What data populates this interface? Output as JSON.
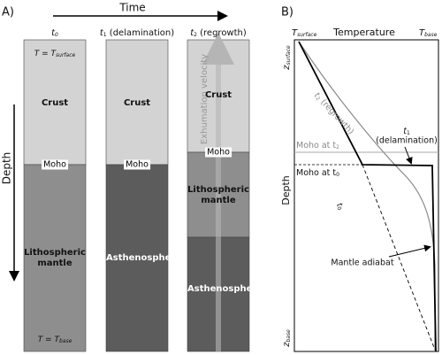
{
  "panel_a": {
    "label": "A)",
    "time_axis": "Time",
    "depth_axis": "Depth",
    "columns": [
      {
        "header": {
          "var": "t",
          "sub": "0"
        },
        "top_condition": {
          "text": "T = T",
          "sub": "surface"
        },
        "layers": [
          "Crust",
          "Lithospheric mantle"
        ],
        "moho": "Moho",
        "bottom_condition": {
          "text": "T = T",
          "sub": "base"
        }
      },
      {
        "header": {
          "var": "t",
          "sub": "1",
          "rest": " (delamination)"
        },
        "layers": [
          "Crust",
          "Asthenosphere"
        ],
        "moho": "Moho"
      },
      {
        "header": {
          "var": "t",
          "sub": "2",
          "rest": " (regrowth)"
        },
        "layers": [
          "Crust",
          "Lithospheric mantle",
          "Asthenosphere"
        ],
        "moho": "Moho",
        "arrow_label": "Exhumation velocity"
      }
    ]
  },
  "panel_b": {
    "label": "B)",
    "x_axis": "Temperature",
    "x_start": {
      "var": "T",
      "sub": "surface"
    },
    "x_end": {
      "var": "T",
      "sub": "base"
    },
    "y_axis": "Depth",
    "y_start": {
      "var": "z",
      "sub": "surface"
    },
    "y_end": {
      "var": "z",
      "sub": "base"
    },
    "moho_t2": {
      "text": "Moho at t",
      "sub": "2"
    },
    "moho_t0": {
      "text": "Moho at t",
      "sub": "0"
    },
    "curves": [
      {
        "var": "t",
        "sub": "0"
      },
      {
        "var": "t",
        "sub": "1",
        "rest": "(delamination)"
      },
      {
        "var": "t",
        "sub": "2",
        "rest": " (regrowth)"
      }
    ],
    "adiabat": "Mantle adiabat"
  }
}
